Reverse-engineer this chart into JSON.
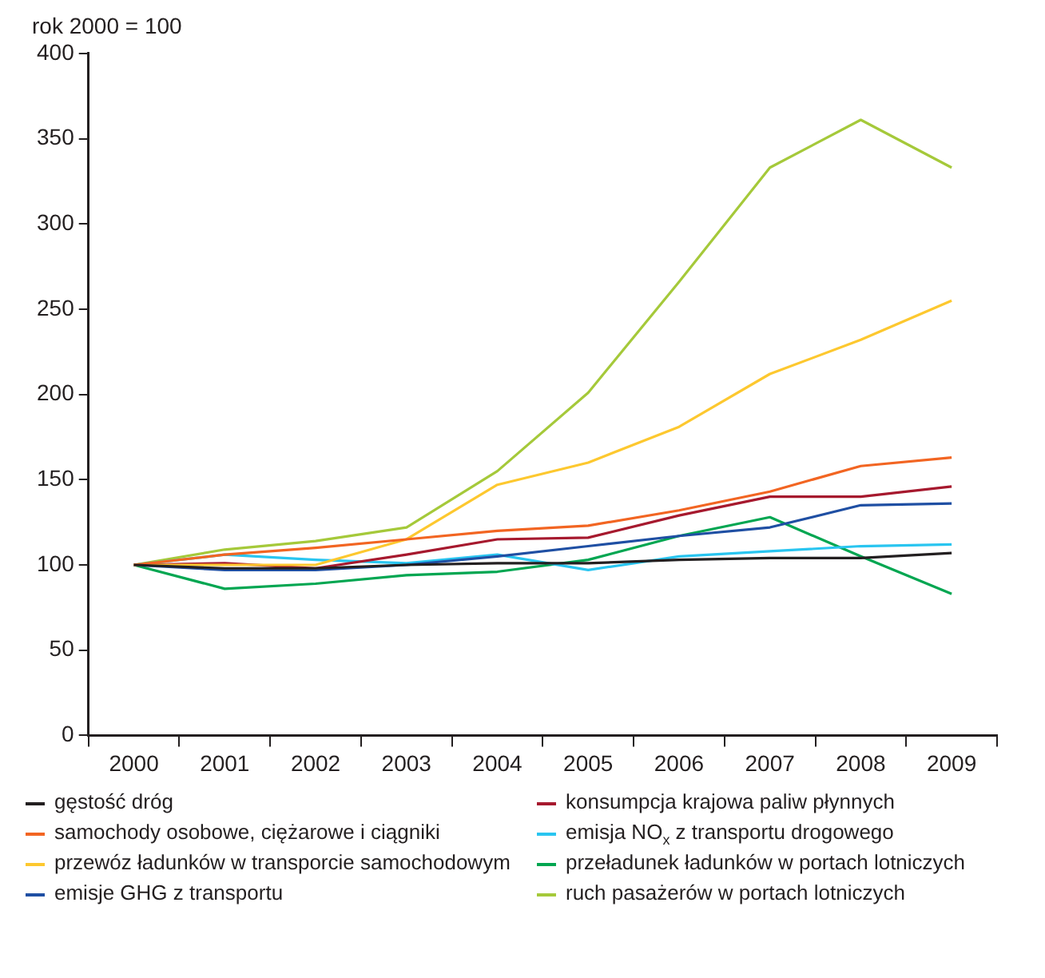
{
  "chart_data": {
    "type": "line",
    "ylabel": "rok 2000 = 100",
    "categories": [
      "2000",
      "2001",
      "2002",
      "2003",
      "2004",
      "2005",
      "2006",
      "2007",
      "2008",
      "2009"
    ],
    "ylim": [
      0,
      400
    ],
    "yticks": [
      0,
      50,
      100,
      150,
      200,
      250,
      300,
      350,
      400
    ],
    "grid": false,
    "legend": "bottom",
    "marker": "none",
    "line_style": "solid",
    "series": [
      {
        "name": "gęstość dróg",
        "color": "#231f20",
        "values": [
          100,
          98,
          98,
          100,
          101,
          101,
          103,
          104,
          104,
          107
        ]
      },
      {
        "name": "samochody osobowe, ciężarowe i ciągniki",
        "color": "#f26522",
        "values": [
          100,
          106,
          110,
          115,
          120,
          123,
          132,
          143,
          158,
          163
        ]
      },
      {
        "name": "przewóz ładunków w transporcie samochodowym",
        "color": "#fdc82f",
        "values": [
          100,
          100,
          100,
          115,
          147,
          160,
          181,
          212,
          232,
          255
        ]
      },
      {
        "name": "emisje GHG z transportu",
        "color": "#1f4fa3",
        "values": [
          100,
          97,
          97,
          100,
          105,
          111,
          117,
          122,
          135,
          136
        ]
      },
      {
        "name": "konsumpcja krajowa paliw płynnych",
        "color": "#a6192e",
        "values": [
          100,
          101,
          98,
          106,
          115,
          116,
          129,
          140,
          140,
          146
        ]
      },
      {
        "name": "emisja NO$_{x}$ z transportu drogowego",
        "color": "#29c5f0",
        "values": [
          100,
          106,
          103,
          101,
          106,
          97,
          105,
          108,
          111,
          112
        ]
      },
      {
        "name": "przeładunek ładunków w portach lotniczych",
        "color": "#00a651",
        "values": [
          100,
          86,
          89,
          94,
          96,
          103,
          117,
          128,
          105,
          83
        ]
      },
      {
        "name": "ruch pasażerów w portach lotniczych",
        "color": "#a5c93a",
        "values": [
          100,
          109,
          114,
          122,
          155,
          201,
          266,
          333,
          361,
          333
        ]
      }
    ]
  }
}
